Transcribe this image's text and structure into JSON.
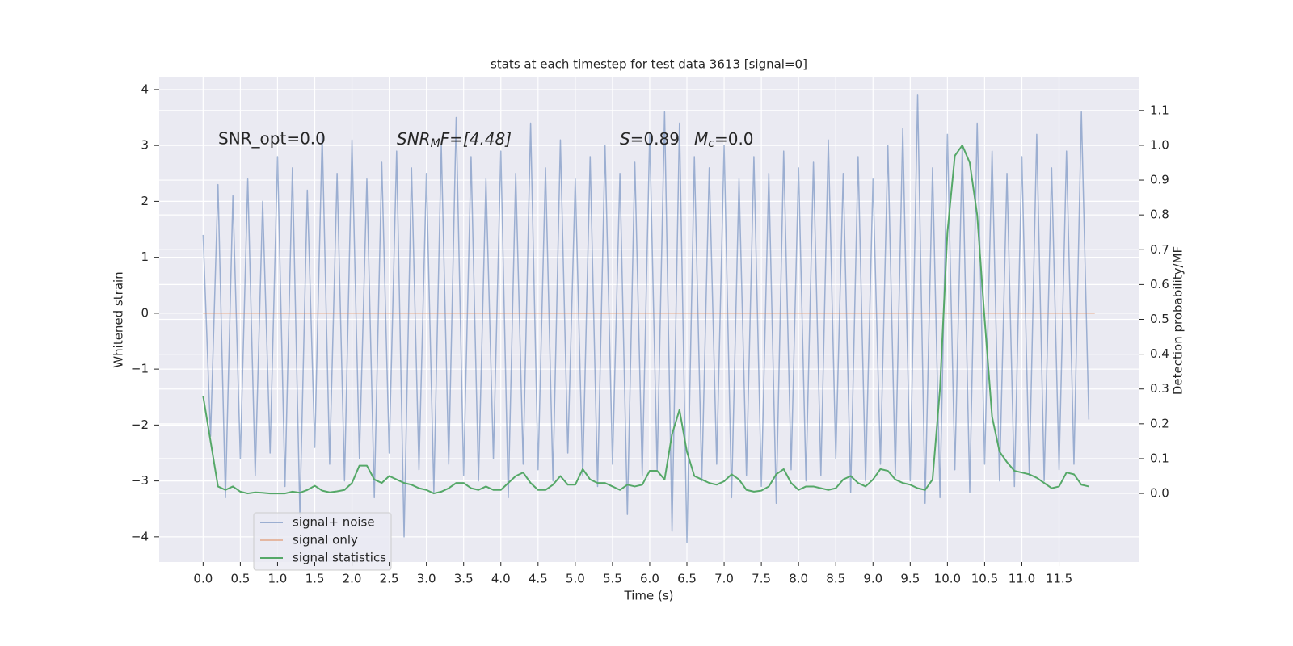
{
  "chart_data": {
    "type": "line",
    "title": "stats at each timestep for test data 3613 [signal=0]",
    "xlabel": "Time (s)",
    "ylabel": "Whitened strain",
    "y2label": "Detection probability/MF",
    "annotations": [
      "SNR_opt=0.0",
      [
        "SNR",
        "M",
        "F=[4.48]"
      ],
      [
        "S",
        "=0.89"
      ],
      [
        "M",
        "c",
        "=0.0"
      ]
    ],
    "xlim": [
      -0.59,
      12.58
    ],
    "ylim": [
      -4.45,
      4.23
    ],
    "y2lim": [
      -0.197,
      1.197
    ],
    "xticks": [
      {
        "value": 0,
        "label": "0.0"
      },
      0.5,
      {
        "value": 1,
        "label": "1.0"
      },
      1.5,
      {
        "value": 2,
        "label": "2.0"
      },
      2.5,
      {
        "value": 3,
        "label": "3.0"
      },
      3.5,
      {
        "value": 4,
        "label": "4.0"
      },
      4.5,
      {
        "value": 5,
        "label": "5.0"
      },
      5.5,
      {
        "value": 6,
        "label": "6.0"
      },
      6.5,
      {
        "value": 7,
        "label": "7.0"
      },
      7.5,
      {
        "value": 8,
        "label": "8.0"
      },
      8.5,
      {
        "value": 9,
        "label": "9.0"
      },
      9.5,
      {
        "value": 10,
        "label": "10.0"
      },
      10.5,
      {
        "value": 11,
        "label": "11.0"
      },
      11.5
    ],
    "yticks": [
      {
        "value": -4,
        "label": "−4"
      },
      {
        "value": -3,
        "label": "−3"
      },
      {
        "value": -2,
        "label": "−2"
      },
      {
        "value": -1,
        "label": "−1"
      },
      0,
      1,
      2,
      3,
      4
    ],
    "y2ticks": [
      {
        "value": 0,
        "label": "0.0"
      },
      0.1,
      0.2,
      0.3,
      0.4,
      0.5,
      0.6,
      0.7,
      0.8,
      0.9,
      {
        "value": 1,
        "label": "1.0"
      },
      1.1
    ],
    "grid": true,
    "legend": "lower left",
    "x": [
      0.0,
      0.1,
      0.2,
      0.3,
      0.4,
      0.5,
      0.6,
      0.7,
      0.8,
      0.9,
      1.0,
      1.1,
      1.2,
      1.3,
      1.4,
      1.5,
      1.6,
      1.7,
      1.8,
      1.9,
      2.0,
      2.1,
      2.2,
      2.3,
      2.4,
      2.5,
      2.6,
      2.7,
      2.8,
      2.9,
      3.0,
      3.1,
      3.2,
      3.3,
      3.4,
      3.5,
      3.6,
      3.7,
      3.8,
      3.9,
      4.0,
      4.1,
      4.2,
      4.3,
      4.4,
      4.5,
      4.6,
      4.7,
      4.8,
      4.9,
      5.0,
      5.1,
      5.2,
      5.3,
      5.4,
      5.5,
      5.6,
      5.7,
      5.8,
      5.9,
      6.0,
      6.1,
      6.2,
      6.3,
      6.4,
      6.5,
      6.6,
      6.7,
      6.8,
      6.9,
      7.0,
      7.1,
      7.2,
      7.3,
      7.4,
      7.5,
      7.6,
      7.7,
      7.8,
      7.9,
      8.0,
      8.1,
      8.2,
      8.3,
      8.4,
      8.5,
      8.6,
      8.7,
      8.8,
      8.9,
      9.0,
      9.1,
      9.2,
      9.3,
      9.4,
      9.5,
      9.6,
      9.7,
      9.8,
      9.9,
      10.0,
      10.1,
      10.2,
      10.3,
      10.4,
      10.5,
      10.6,
      10.7,
      10.8,
      10.9,
      11.0,
      11.1,
      11.2,
      11.3,
      11.4,
      11.5,
      11.6,
      11.7,
      11.8,
      11.9
    ],
    "series": [
      {
        "name": "signal+ noise",
        "color": "#4c72b0",
        "alpha": 0.5,
        "values": [
          1.4,
          -2.2,
          2.3,
          -3.3,
          2.1,
          -2.6,
          2.4,
          -2.9,
          2.0,
          -2.5,
          2.8,
          -3.1,
          2.6,
          -3.6,
          2.2,
          -2.4,
          3.2,
          -2.7,
          2.5,
          -3.0,
          3.1,
          -2.6,
          2.4,
          -3.3,
          2.7,
          -2.5,
          2.9,
          -4.0,
          2.6,
          -2.8,
          2.5,
          -3.2,
          3.0,
          -2.7,
          3.5,
          -2.9,
          2.8,
          -3.0,
          2.4,
          -2.6,
          2.9,
          -3.3,
          2.5,
          -2.7,
          3.4,
          -2.8,
          2.6,
          -3.0,
          3.1,
          -2.5,
          2.4,
          -2.9,
          2.8,
          -3.1,
          3.0,
          -2.7,
          2.5,
          -3.6,
          2.7,
          -2.9,
          3.2,
          -2.8,
          3.6,
          -3.9,
          3.4,
          -4.1,
          2.8,
          -3.0,
          2.6,
          -2.7,
          3.0,
          -3.3,
          2.4,
          -2.9,
          2.8,
          -3.1,
          2.5,
          -3.4,
          2.9,
          -2.8,
          2.6,
          -3.0,
          2.7,
          -2.9,
          3.1,
          -2.6,
          2.5,
          -3.2,
          2.8,
          -3.0,
          2.4,
          -2.7,
          3.0,
          -2.9,
          3.3,
          -3.0,
          3.9,
          -3.4,
          2.6,
          -3.3,
          3.2,
          -2.8,
          3.0,
          -3.2,
          3.4,
          -2.7,
          2.9,
          -3.0,
          2.5,
          -3.1,
          2.8,
          -2.9,
          3.2,
          -3.0,
          2.6,
          -2.8,
          2.9,
          -2.7,
          3.6,
          -1.9
        ]
      },
      {
        "name": "signal only",
        "color": "#dd8452",
        "alpha": 0.5,
        "x": [
          0,
          11.98
        ],
        "values": [
          0,
          0
        ]
      },
      {
        "name": "signal statistics",
        "color": "#55a868",
        "axis": "y2",
        "values": [
          0.28,
          0.15,
          0.02,
          0.01,
          0.02,
          0.005,
          0.0,
          0.003,
          0.002,
          0.0,
          0.0,
          0.0,
          0.005,
          0.002,
          0.01,
          0.022,
          0.008,
          0.003,
          0.006,
          0.01,
          0.03,
          0.08,
          0.08,
          0.04,
          0.03,
          0.05,
          0.04,
          0.03,
          0.025,
          0.015,
          0.01,
          0.0,
          0.005,
          0.015,
          0.03,
          0.03,
          0.015,
          0.01,
          0.02,
          0.01,
          0.01,
          0.03,
          0.05,
          0.06,
          0.03,
          0.01,
          0.01,
          0.025,
          0.05,
          0.025,
          0.025,
          0.07,
          0.04,
          0.03,
          0.03,
          0.02,
          0.01,
          0.025,
          0.02,
          0.025,
          0.065,
          0.065,
          0.04,
          0.17,
          0.24,
          0.12,
          0.05,
          0.04,
          0.03,
          0.025,
          0.035,
          0.055,
          0.04,
          0.01,
          0.005,
          0.008,
          0.02,
          0.055,
          0.07,
          0.03,
          0.01,
          0.02,
          0.02,
          0.015,
          0.01,
          0.015,
          0.04,
          0.05,
          0.03,
          0.02,
          0.04,
          0.07,
          0.065,
          0.04,
          0.03,
          0.025,
          0.015,
          0.01,
          0.04,
          0.3,
          0.75,
          0.97,
          1.0,
          0.95,
          0.8,
          0.5,
          0.22,
          0.12,
          0.09,
          0.065,
          0.06,
          0.055,
          0.045,
          0.03,
          0.015,
          0.02,
          0.06,
          0.055,
          0.025,
          0.02
        ]
      }
    ]
  }
}
